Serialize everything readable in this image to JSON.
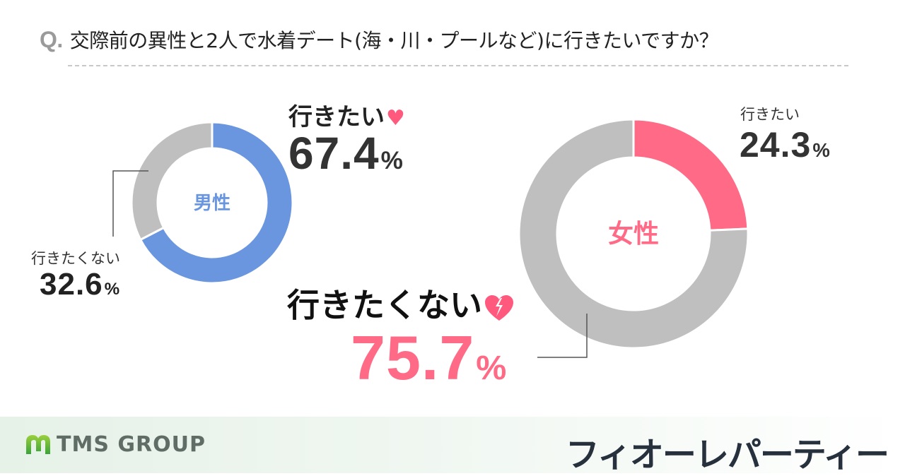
{
  "header": {
    "q_mark": "Q.",
    "question": "交際前の異性と2人で水着デート(海・川・プールなど)に行きたいですか？"
  },
  "colors": {
    "male_accent": "#6a96df",
    "female_accent": "#ff6b86",
    "no_segment": "#bfbfbf",
    "heart": "#ff5a7d",
    "text_dark": "#333333"
  },
  "male": {
    "center_label": "男性",
    "yes": {
      "label": "行きたい",
      "value": "67.4",
      "unit": "%",
      "icon": "heart-icon"
    },
    "no": {
      "label": "行きたくない",
      "value": "32.6",
      "unit": "%"
    }
  },
  "female": {
    "center_label": "女性",
    "yes": {
      "label": "行きたい",
      "value": "24.3",
      "unit": "%"
    },
    "no": {
      "label": "行きたくない",
      "value": "75.7",
      "unit": "%",
      "icon": "broken-heart-icon"
    }
  },
  "footer": {
    "left_logo": "TMS GROUP",
    "right_brand": "フィオーレパーティー"
  },
  "chart_data": [
    {
      "type": "pie",
      "variant": "donut",
      "title": "男性",
      "categories": [
        "行きたい",
        "行きたくない"
      ],
      "values": [
        67.4,
        32.6
      ],
      "colors": [
        "#6a96df",
        "#bfbfbf"
      ],
      "unit": "%"
    },
    {
      "type": "pie",
      "variant": "donut",
      "title": "女性",
      "categories": [
        "行きたい",
        "行きたくない"
      ],
      "values": [
        24.3,
        75.7
      ],
      "colors": [
        "#ff6b86",
        "#bfbfbf"
      ],
      "unit": "%"
    }
  ]
}
